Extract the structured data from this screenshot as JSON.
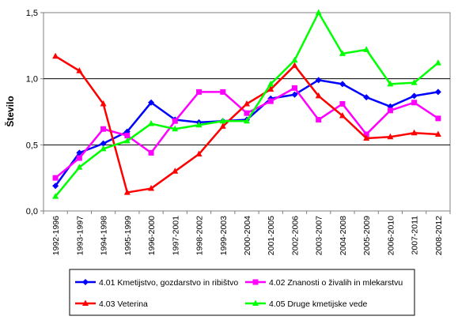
{
  "chart_data": {
    "type": "line",
    "title": "",
    "xlabel": "",
    "ylabel": "Število",
    "ylim": [
      0,
      1.5
    ],
    "yticks": [
      "0,0",
      "0,5",
      "1,0",
      "1,5"
    ],
    "grid": "horizontal",
    "legend_position": "bottom",
    "categories": [
      "1992-1996",
      "1993-1997",
      "1994-1998",
      "1995-1999",
      "1996-2000",
      "1997-2001",
      "1998-2002",
      "1999-2003",
      "2000-2004",
      "2001-2005",
      "2002-2006",
      "2003-2007",
      "2004-2008",
      "2005-2009",
      "2006-2010",
      "2007-2011",
      "2008-2012"
    ],
    "series": [
      {
        "name": "4.01 Kmetijstvo, gozdarstvo in ribištvo",
        "color": "#0000ff",
        "marker": "diamond",
        "values": [
          0.19,
          0.44,
          0.51,
          0.6,
          0.82,
          0.69,
          0.67,
          0.68,
          0.69,
          0.85,
          0.88,
          0.99,
          0.96,
          0.86,
          0.79,
          0.87,
          0.9
        ]
      },
      {
        "name": "4.02 Znanosti o živalih in mlekarstvu",
        "color": "#ff00ff",
        "marker": "square",
        "values": [
          0.25,
          0.4,
          0.62,
          0.57,
          0.44,
          0.68,
          0.9,
          0.9,
          0.74,
          0.83,
          0.93,
          0.69,
          0.81,
          0.58,
          0.76,
          0.82,
          0.7
        ]
      },
      {
        "name": "4.03 Veterina",
        "color": "#ff0000",
        "marker": "triangle",
        "values": [
          1.17,
          1.06,
          0.81,
          0.14,
          0.17,
          0.3,
          0.43,
          0.64,
          0.81,
          0.92,
          1.1,
          0.87,
          0.72,
          0.55,
          0.56,
          0.59,
          0.58
        ]
      },
      {
        "name": "4.05 Druge kmetijske vede",
        "color": "#00ff00",
        "marker": "triangle",
        "values": [
          0.11,
          0.33,
          0.47,
          0.53,
          0.66,
          0.62,
          0.65,
          0.68,
          0.68,
          0.96,
          1.14,
          1.5,
          1.19,
          1.22,
          0.96,
          0.97,
          1.12
        ]
      }
    ]
  }
}
